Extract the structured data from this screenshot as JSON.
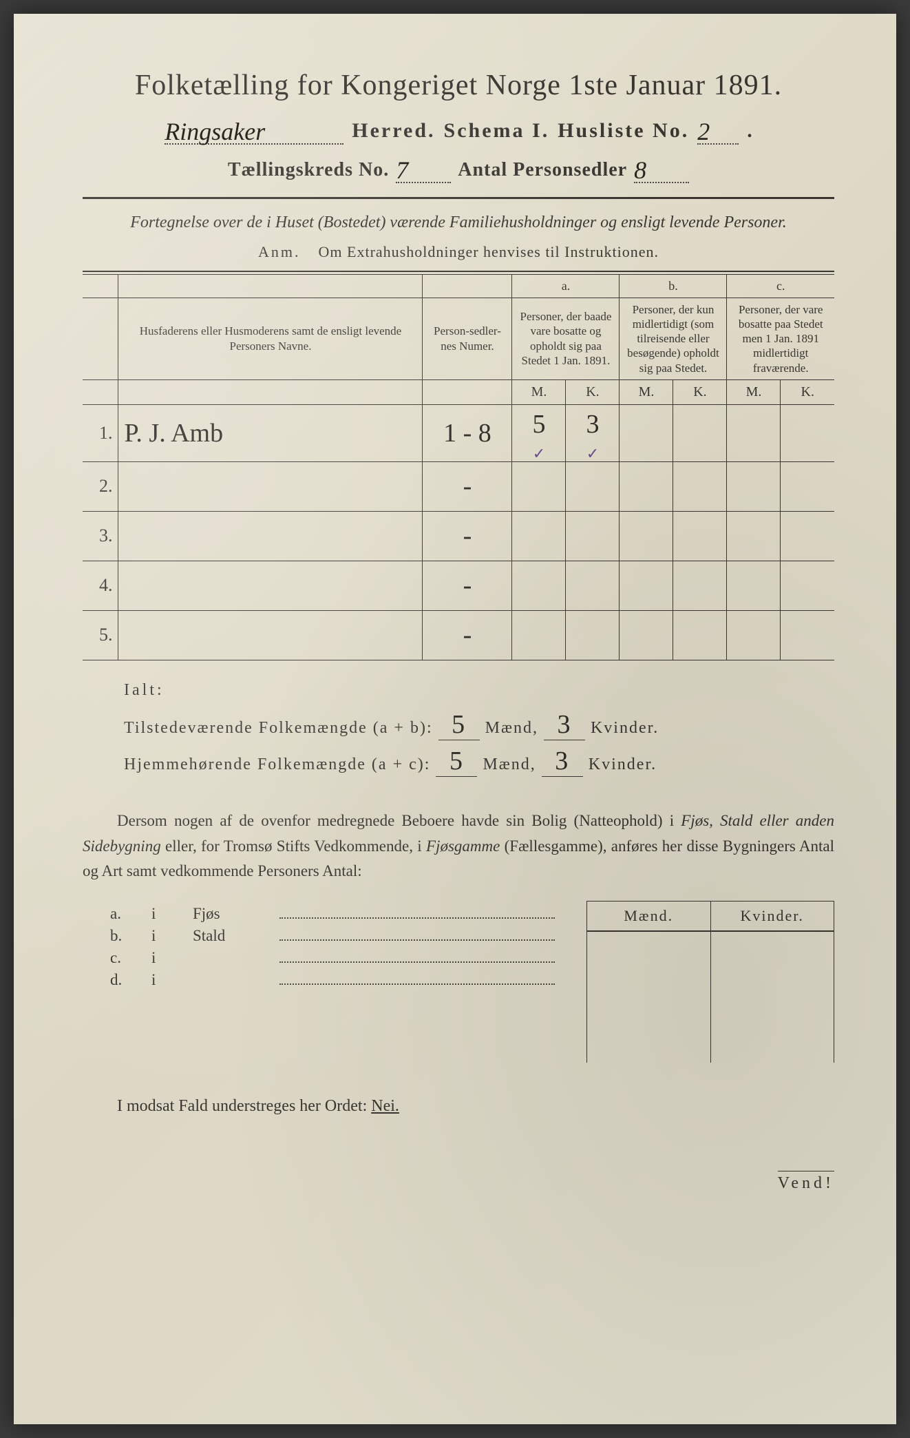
{
  "colors": {
    "paper_bg": "#e0dccb",
    "ink": "#3a3530",
    "handwriting": "#2a2520",
    "tick": "#6a4a8a"
  },
  "title": "Folketælling for Kongeriget Norge 1ste Januar 1891.",
  "line2": {
    "herred_hand": "Ringsaker",
    "herred_label": "Herred.",
    "schema_label": "Schema I.",
    "husliste_label": "Husliste No.",
    "husliste_hand": "2"
  },
  "line3": {
    "kreds_label": "Tællingskreds No.",
    "kreds_hand": "7",
    "antal_label": "Antal Personsedler",
    "antal_hand": "8"
  },
  "subtitle": "Fortegnelse over de i Huset (Bostedet) værende Familiehusholdninger og ensligt levende Personer.",
  "anm_label": "Anm.",
  "anm_text": "Om Extrahusholdninger henvises til Instruktionen.",
  "table": {
    "col_name": "Husfaderens eller Husmoderens samt de ensligt levende Personers Navne.",
    "col_num": "Person-sedler-nes Numer.",
    "col_a_top": "a.",
    "col_a": "Personer, der baade vare bosatte og opholdt sig paa Stedet 1 Jan. 1891.",
    "col_b_top": "b.",
    "col_b": "Personer, der kun midlertidigt (som tilreisende eller besøgende) opholdt sig paa Stedet.",
    "col_c_top": "c.",
    "col_c": "Personer, der vare bosatte paa Stedet men 1 Jan. 1891 midlertidigt fraværende.",
    "M": "M.",
    "K": "K.",
    "rows": [
      {
        "n": "1.",
        "name": "P. J. Amb",
        "num": "1 - 8",
        "aM": "5",
        "aK": "3",
        "tickM": "✓",
        "tickK": "✓"
      },
      {
        "n": "2.",
        "name": "",
        "num": "-",
        "aM": "",
        "aK": ""
      },
      {
        "n": "3.",
        "name": "",
        "num": "-",
        "aM": "",
        "aK": ""
      },
      {
        "n": "4.",
        "name": "",
        "num": "-",
        "aM": "",
        "aK": ""
      },
      {
        "n": "5.",
        "name": "",
        "num": "-",
        "aM": "",
        "aK": ""
      }
    ]
  },
  "ialt": {
    "label": "Ialt:",
    "line1_a": "Tilstedeværende Folkemængde (a + b):",
    "line2_a": "Hjemmehørende Folkemængde (a + c):",
    "maend": "Mænd,",
    "kvinder": "Kvinder.",
    "v1m": "5",
    "v1k": "3",
    "v2m": "5",
    "v2k": "3"
  },
  "para": {
    "t1": "Dersom nogen af de ovenfor medregnede Beboere havde sin Bolig (Natteophold) i ",
    "i1": "Fjøs, Stald eller anden Sidebygning",
    "t2": " eller, for Tromsø Stifts Vedkommende, i ",
    "i2": "Fjøsgamme",
    "t3": " (Fællesgamme), anføres her disse Bygningers Antal og Art samt vedkommende Personers Antal:"
  },
  "mk": {
    "m": "Mænd.",
    "k": "Kvinder."
  },
  "side": [
    {
      "a": "a.",
      "b": "i",
      "c": "Fjøs"
    },
    {
      "a": "b.",
      "b": "i",
      "c": "Stald"
    },
    {
      "a": "c.",
      "b": "i",
      "c": ""
    },
    {
      "a": "d.",
      "b": "i",
      "c": ""
    }
  ],
  "nei": {
    "pre": "I modsat Fald understreges her Ordet: ",
    "word": "Nei."
  },
  "vend": "Vend!"
}
